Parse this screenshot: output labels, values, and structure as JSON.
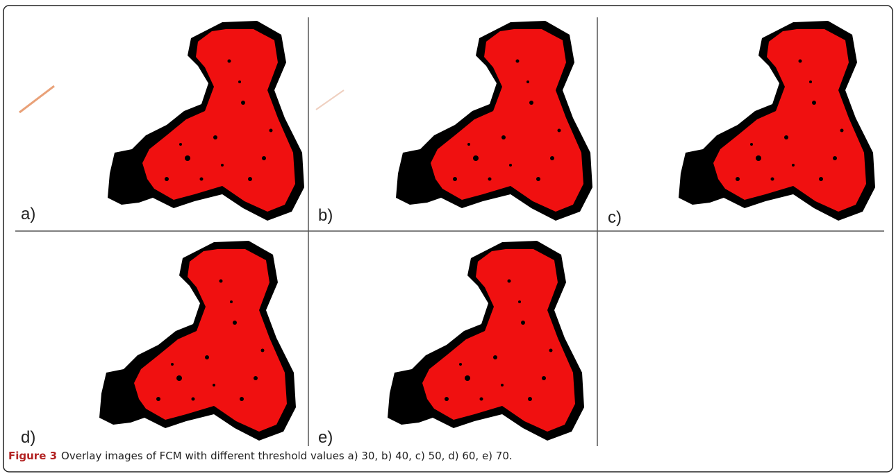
{
  "figure": {
    "panels": [
      {
        "label": "a)"
      },
      {
        "label": "b)"
      },
      {
        "label": "c)"
      },
      {
        "label": "d)"
      },
      {
        "label": "e)"
      }
    ],
    "caption": {
      "label": "Figure 3",
      "text": "Overlay images of FCM with different threshold values a) 30, b) 40, c) 50, d) 60, e) 70."
    }
  }
}
